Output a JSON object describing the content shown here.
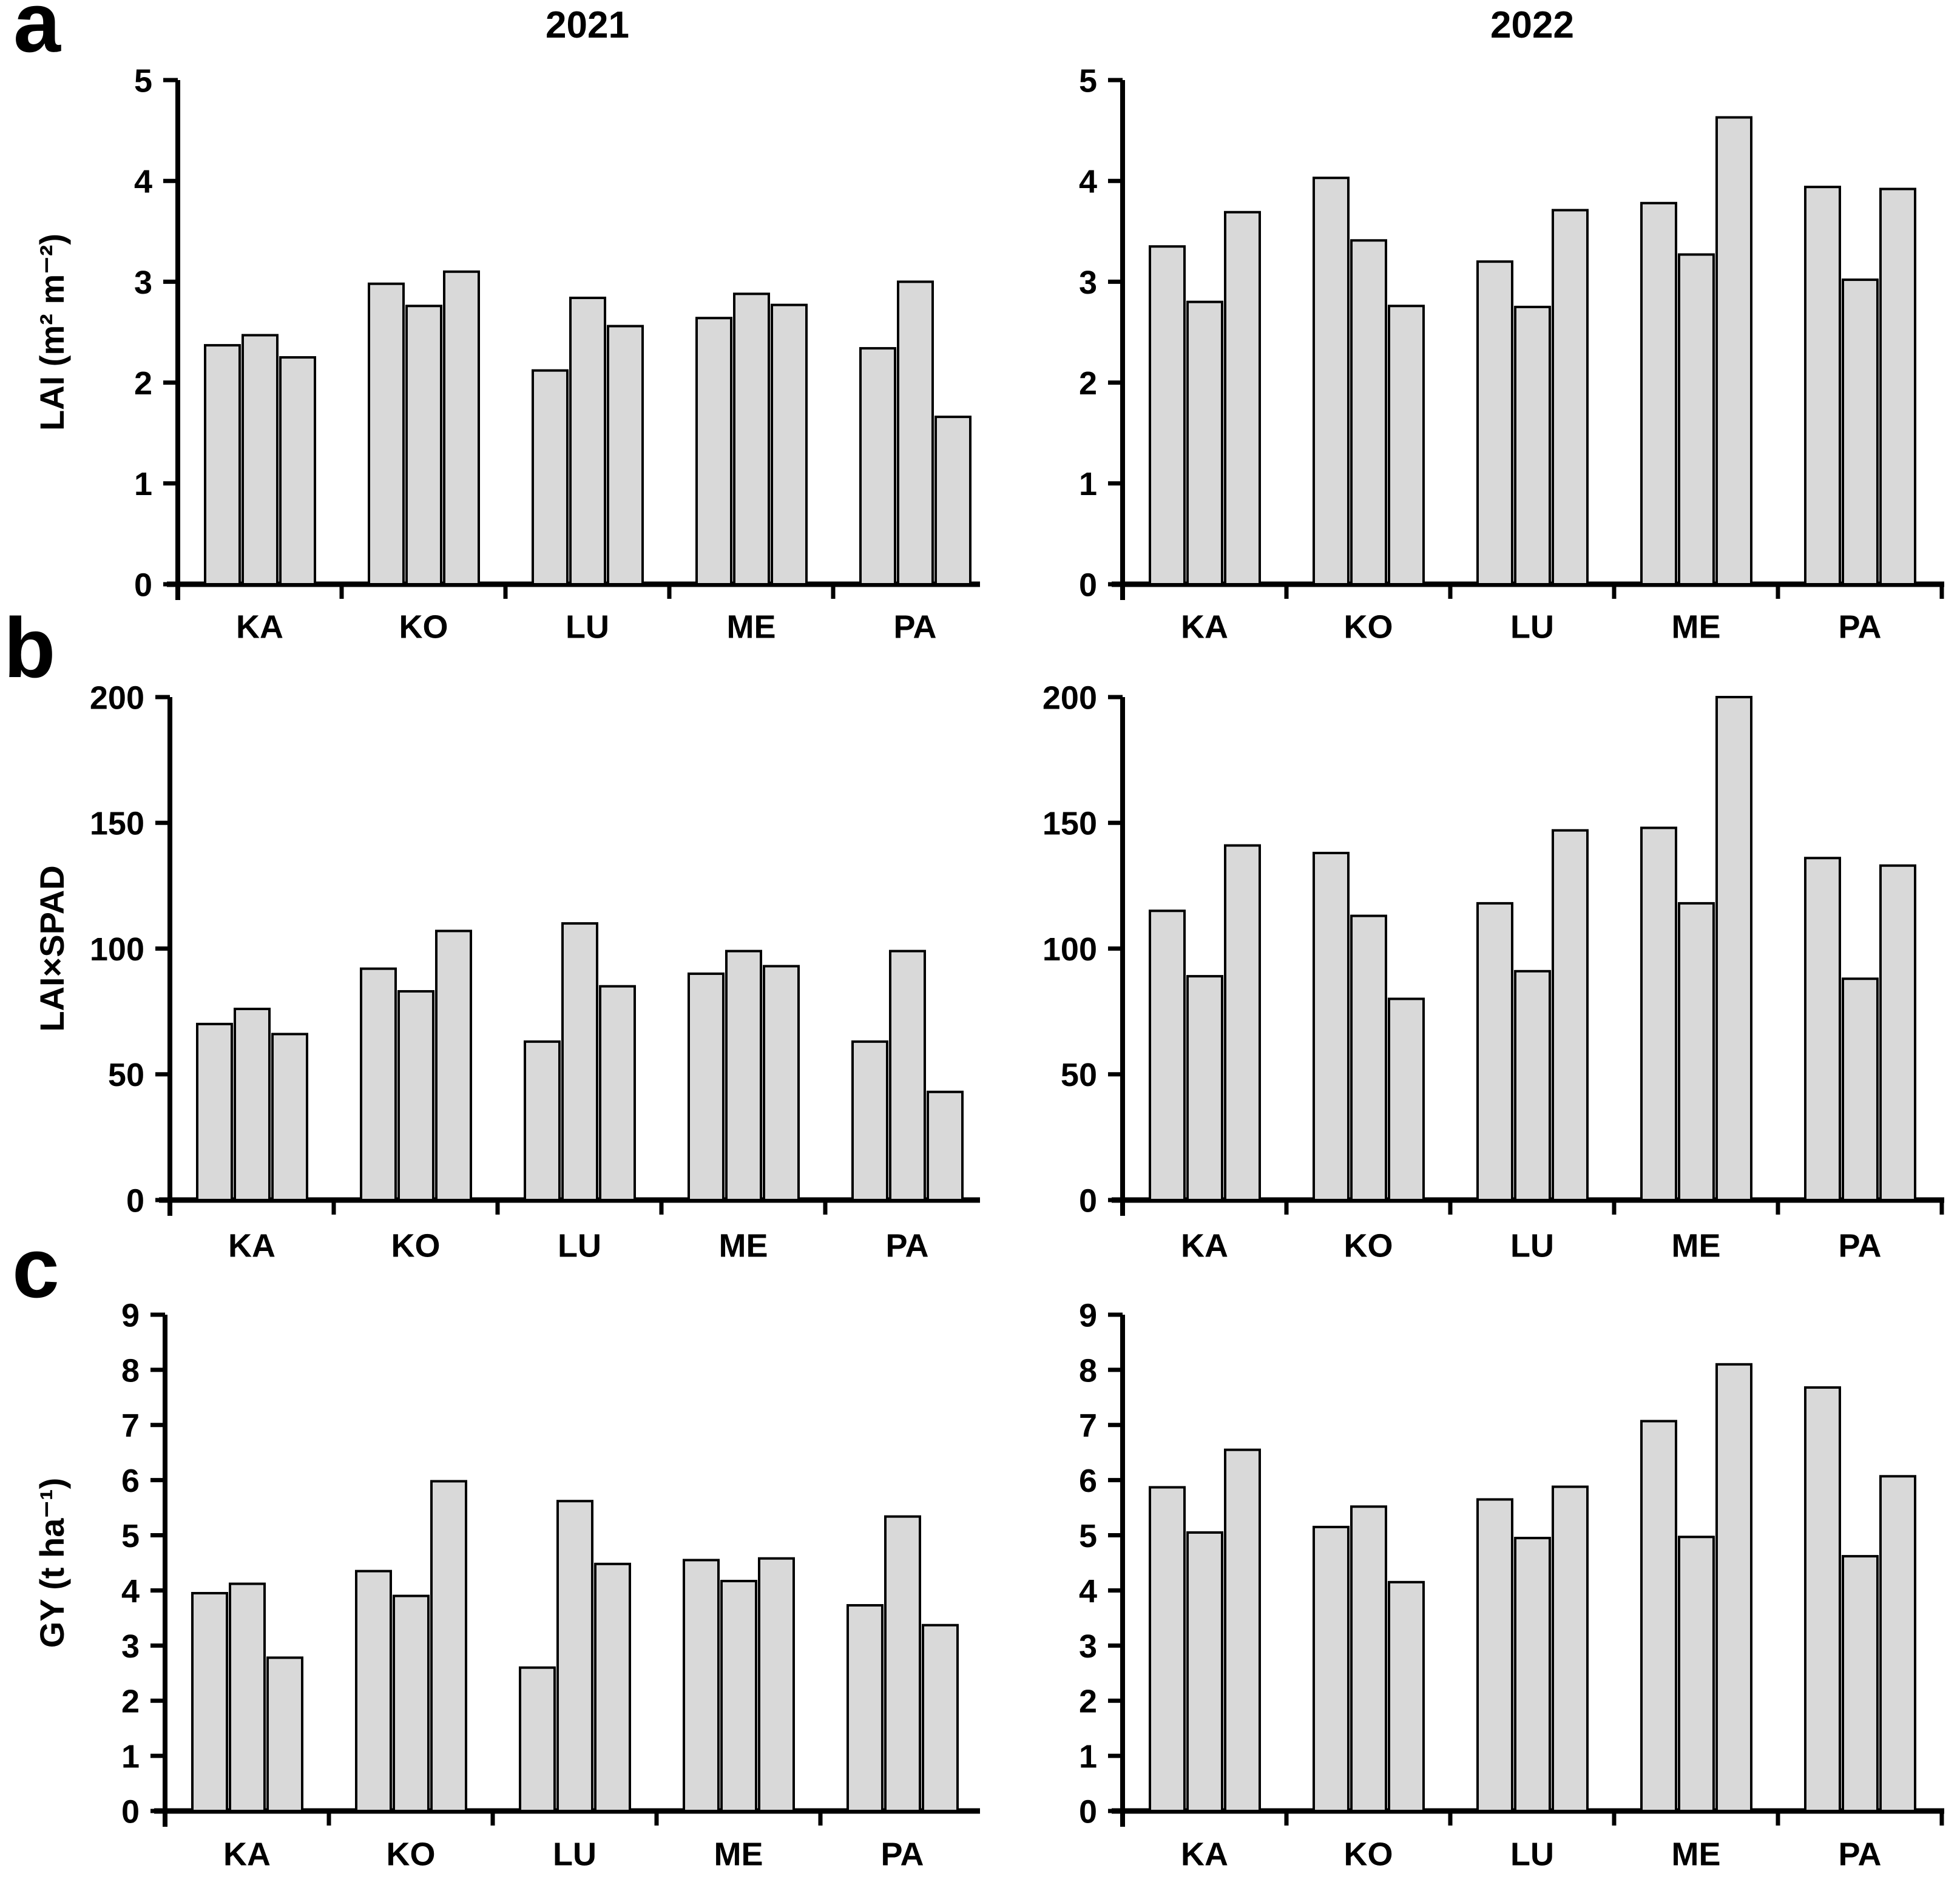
{
  "figure": {
    "panel_letters": [
      "a",
      "b",
      "c"
    ],
    "column_titles": [
      "2021",
      "2022"
    ],
    "bar_fill": "#d9d9d9",
    "bar_stroke": "#000000",
    "axis_color": "#000000",
    "background": "#ffffff"
  },
  "chart_data": [
    {
      "type": "bar",
      "panel": "a",
      "title": "2021",
      "ylabel": "LAI (m² m⁻²)",
      "ylim": [
        0,
        5
      ],
      "ytick": 1,
      "legend": "none",
      "grid": false,
      "categories": [
        "KA",
        "KO",
        "LU",
        "ME",
        "PA"
      ],
      "groups": [
        [
          2.37,
          2.47,
          2.25
        ],
        [
          2.98,
          2.76,
          3.1
        ],
        [
          2.12,
          2.84,
          2.56
        ],
        [
          2.64,
          2.88,
          2.77
        ],
        [
          2.34,
          3.0,
          1.66
        ]
      ]
    },
    {
      "type": "bar",
      "panel": "a",
      "title": "2022",
      "ylabel": "",
      "ylim": [
        0,
        5
      ],
      "ytick": 1,
      "legend": "none",
      "grid": false,
      "categories": [
        "KA",
        "KO",
        "LU",
        "ME",
        "PA"
      ],
      "groups": [
        [
          3.35,
          2.8,
          3.69
        ],
        [
          4.03,
          3.41,
          2.76
        ],
        [
          3.2,
          2.75,
          3.71
        ],
        [
          3.78,
          3.27,
          4.63
        ],
        [
          3.94,
          3.02,
          3.92
        ]
      ]
    },
    {
      "type": "bar",
      "panel": "b",
      "title": "",
      "ylabel": "LAI×SPAD",
      "ylim": [
        0,
        200
      ],
      "ytick": 50,
      "legend": "none",
      "grid": false,
      "categories": [
        "KA",
        "KO",
        "LU",
        "ME",
        "PA"
      ],
      "groups": [
        [
          70,
          76,
          66
        ],
        [
          92,
          83,
          107
        ],
        [
          63,
          110,
          85
        ],
        [
          90,
          99,
          93
        ],
        [
          63,
          99,
          43
        ]
      ]
    },
    {
      "type": "bar",
      "panel": "b",
      "title": "",
      "ylabel": "",
      "ylim": [
        0,
        200
      ],
      "ytick": 50,
      "legend": "none",
      "grid": false,
      "categories": [
        "KA",
        "KO",
        "LU",
        "ME",
        "PA"
      ],
      "groups": [
        [
          115,
          89,
          141
        ],
        [
          138,
          113,
          80
        ],
        [
          118,
          91,
          147
        ],
        [
          148,
          118,
          200
        ],
        [
          136,
          88,
          133
        ]
      ]
    },
    {
      "type": "bar",
      "panel": "c",
      "title": "",
      "ylabel": "GY (t ha⁻¹)",
      "ylim": [
        0,
        9
      ],
      "ytick": 1,
      "legend": "none",
      "grid": false,
      "categories": [
        "KA",
        "KO",
        "LU",
        "ME",
        "PA"
      ],
      "groups": [
        [
          3.95,
          4.12,
          2.78
        ],
        [
          4.35,
          3.9,
          5.98
        ],
        [
          2.6,
          5.62,
          4.48
        ],
        [
          4.55,
          4.17,
          4.58
        ],
        [
          3.73,
          5.34,
          3.37
        ]
      ]
    },
    {
      "type": "bar",
      "panel": "c",
      "title": "",
      "ylabel": "",
      "ylim": [
        0,
        9
      ],
      "ytick": 1,
      "legend": "none",
      "grid": false,
      "categories": [
        "KA",
        "KO",
        "LU",
        "ME",
        "PA"
      ],
      "groups": [
        [
          5.87,
          5.05,
          6.55
        ],
        [
          5.15,
          5.52,
          4.15
        ],
        [
          5.65,
          4.95,
          5.88
        ],
        [
          7.07,
          4.97,
          8.1
        ],
        [
          7.68,
          4.62,
          6.07
        ]
      ]
    }
  ]
}
